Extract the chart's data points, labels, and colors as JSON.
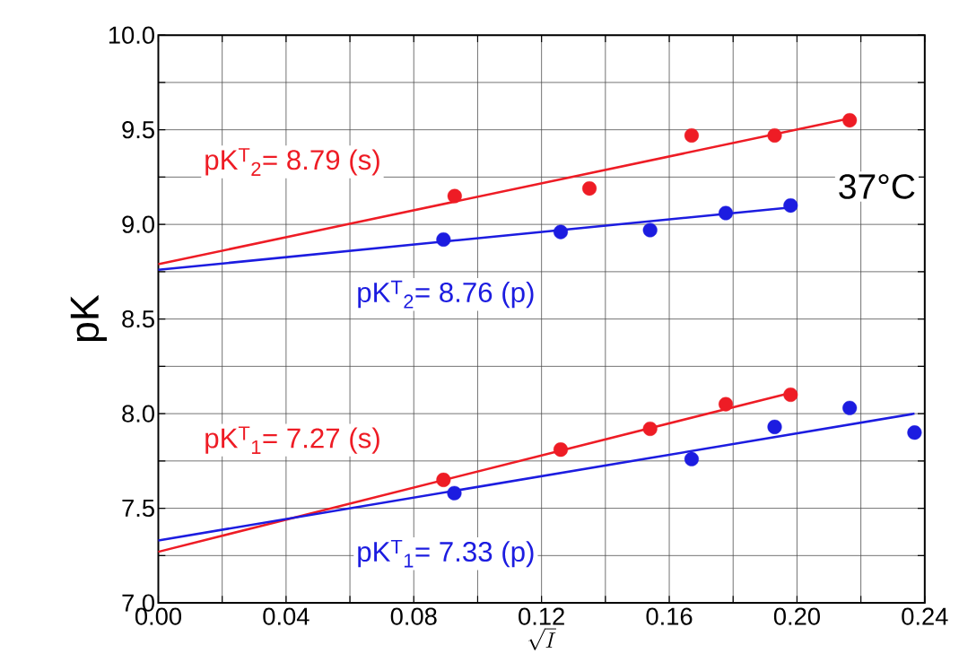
{
  "chart_data": {
    "type": "scatter",
    "xlabel": "\\sqrt{I}",
    "ylabel": "pK",
    "xlim": [
      0,
      0.24
    ],
    "ylim": [
      7.0,
      10.0
    ],
    "xticks": [
      {
        "value": 0,
        "label": "0.00"
      },
      {
        "value": 0.02,
        "label": null
      },
      0.04,
      {
        "value": 0.06,
        "label": null
      },
      0.08,
      {
        "value": 0.1,
        "label": null
      },
      0.12,
      {
        "value": 0.14,
        "label": null
      },
      0.16,
      {
        "value": 0.18,
        "label": null
      },
      {
        "value": 0.2,
        "label": "0.20"
      },
      {
        "value": 0.22,
        "label": null
      },
      0.24
    ],
    "yticks": [
      {
        "value": 7.0,
        "label": "7.0"
      },
      {
        "value": 7.25,
        "label": null
      },
      7.5,
      {
        "value": 7.75,
        "label": null
      },
      {
        "value": 8.0,
        "label": "8.0"
      },
      {
        "value": 8.25,
        "label": null
      },
      8.5,
      {
        "value": 8.75,
        "label": null
      },
      {
        "value": 9.0,
        "label": "9.0"
      },
      {
        "value": 9.25,
        "label": null
      },
      9.5,
      {
        "value": 9.75,
        "label": null
      },
      {
        "value": 10.0,
        "label": "10.0"
      }
    ],
    "grid": true,
    "marker": "circle",
    "series": [
      {
        "color": "#ee1c25",
        "x": [
          0.0928,
          0.135,
          0.167,
          0.193,
          0.2165
        ],
        "values": [
          9.15,
          9.19,
          9.47,
          9.47,
          9.55
        ]
      },
      {
        "color": "#1c1ce0",
        "x": [
          0.0893,
          0.126,
          0.154,
          0.1777,
          0.198
        ],
        "values": [
          8.92,
          8.96,
          8.97,
          9.06,
          9.1
        ]
      },
      {
        "color": "#ee1c25",
        "x": [
          0.0893,
          0.126,
          0.154,
          0.1777,
          0.198
        ],
        "values": [
          7.65,
          7.81,
          7.92,
          8.05,
          8.1
        ]
      },
      {
        "color": "#1c1ce0",
        "x": [
          0.0927,
          0.167,
          0.193,
          0.2165,
          0.2368
        ],
        "values": [
          7.58,
          7.76,
          7.93,
          8.03,
          7.9
        ]
      },
      {
        "type": "line",
        "marker": "none",
        "color": "#ee1c25",
        "x": [
          0,
          0.2165
        ],
        "values": [
          8.79,
          9.56
        ]
      },
      {
        "type": "line",
        "marker": "none",
        "color": "#1c1ce0",
        "x": [
          0,
          0.198
        ],
        "values": [
          8.76,
          9.09
        ]
      },
      {
        "type": "line",
        "marker": "none",
        "color": "#ee1c25",
        "x": [
          0,
          0.198
        ],
        "values": [
          7.27,
          8.11
        ]
      },
      {
        "type": "line",
        "marker": "none",
        "color": "#1c1ce0",
        "x": [
          0,
          0.2368
        ],
        "values": [
          7.33,
          8.0
        ]
      }
    ],
    "annotations": [
      "pK$^{T}$$_{2}$= 8.79 (s)",
      "pK$^{T}$$_{2}$= 8.76 (p)",
      "37°C",
      "pK$^{T}$$_{1}$= 7.27 (s)",
      "pK$^{T}$$_{1}$= 7.33 (p)"
    ]
  }
}
